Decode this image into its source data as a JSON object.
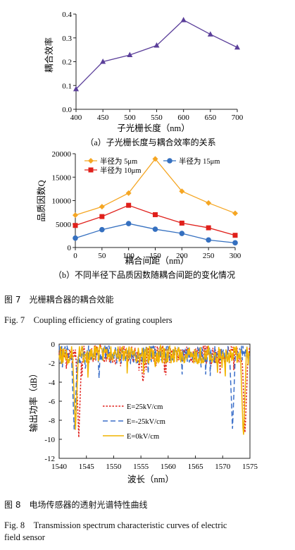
{
  "fig7": {
    "caption_cn": "图 7　光栅耦合器的耦合效能",
    "caption_en": "Fig. 7　Coupling efficiency of grating couplers"
  },
  "fig8": {
    "caption_cn": "图 8　电场传感器的透射光谱特性曲线",
    "caption_en_line1": "Fig. 8　Transmission spectrum characteristic curves of electric",
    "caption_en_line2": "field sensor"
  },
  "colors": {
    "orange": "#f5a623",
    "red": "#e0201b",
    "blue": "#3570c0",
    "purple": "#5b3f9a",
    "yellow": "#f0b400",
    "dash_blue": "#3b6fc9"
  },
  "chart_data": [
    {
      "type": "line",
      "subcaption": "（a）子光栅长度与耦合效率的关系",
      "xlabel": "子光栅长度（nm）",
      "ylabel": "耦合效率",
      "x": [
        400,
        450,
        500,
        550,
        600,
        650,
        700
      ],
      "xticks": [
        "400",
        "450",
        "500",
        "550",
        "600",
        "650",
        "700"
      ],
      "yticks": [
        "0.0",
        "0.1",
        "0.2",
        "0.3",
        "0.4"
      ],
      "xlim": [
        400,
        700
      ],
      "ylim": [
        0,
        0.4
      ],
      "series": [
        {
          "values": [
            0.085,
            0.2,
            0.228,
            0.268,
            0.375,
            0.315,
            0.26
          ],
          "marker": "triangle"
        }
      ]
    },
    {
      "type": "line",
      "subcaption": "（b）不同半径下品质因数随耦合间距的变化情况",
      "xlabel": "耦合间距（nm）",
      "ylabel": "品质因数Q",
      "x": [
        0,
        50,
        100,
        150,
        200,
        250,
        300
      ],
      "xticks": [
        "0",
        "50",
        "100",
        "150",
        "200",
        "250",
        "300"
      ],
      "yticks": [
        "0",
        "5000",
        "10000",
        "15000",
        "20000"
      ],
      "xlim": [
        0,
        300
      ],
      "ylim": [
        0,
        20000
      ],
      "legend_position": "top",
      "series": [
        {
          "name": "半径为 5μm",
          "values": [
            6900,
            8700,
            11600,
            18900,
            12000,
            9500,
            7300
          ],
          "marker": "diamond"
        },
        {
          "name": "半径为 10μm",
          "values": [
            4700,
            6600,
            9000,
            7000,
            5200,
            4200,
            2600
          ],
          "marker": "square"
        },
        {
          "name": "半径为 15μm",
          "values": [
            2000,
            3800,
            5100,
            3900,
            3000,
            1600,
            1000
          ],
          "marker": "circle"
        }
      ]
    },
    {
      "type": "line",
      "xlabel": "波长（nm）",
      "ylabel": "输出功率（dB）",
      "xticks": [
        "1540",
        "1545",
        "1550",
        "1555",
        "1560",
        "1565",
        "1570",
        "1575"
      ],
      "yticks": [
        "0",
        "-2",
        "-4",
        "-6",
        "-8",
        "-10",
        "-12"
      ],
      "xlim": [
        1540,
        1575
      ],
      "ylim": [
        -12,
        0
      ],
      "legend_position": "lower-left",
      "series": [
        {
          "name": "E=25kV/cm",
          "style": "dotted",
          "dips": [
            [
              1543.6,
              -9.8
            ],
            [
              1555.4,
              -4.2
            ],
            [
              1574.1,
              -9.6
            ]
          ]
        },
        {
          "name": "E=-25kV/cm",
          "style": "dashed",
          "dips": [
            [
              1542.8,
              -9.6
            ],
            [
              1571.8,
              -8.9
            ]
          ]
        },
        {
          "name": "E=0kV/cm",
          "style": "solid",
          "dips": [
            [
              1543.0,
              -9.0
            ],
            [
              1573.8,
              -10.2
            ]
          ]
        }
      ]
    }
  ]
}
